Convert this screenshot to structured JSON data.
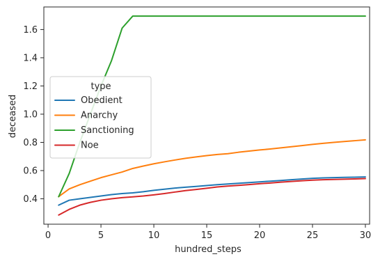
{
  "chart_data": {
    "type": "line",
    "xlabel": "hundred_steps",
    "ylabel": "deceased",
    "xlim": [
      -0.4,
      30.4
    ],
    "ylim": [
      0.22,
      1.76
    ],
    "xticks": [
      0,
      5,
      10,
      15,
      20,
      25,
      30
    ],
    "xtick_labels": [
      "0",
      "5",
      "10",
      "15",
      "20",
      "25",
      "30"
    ],
    "yticks": [
      0.4,
      0.6,
      0.8,
      1.0,
      1.2,
      1.4,
      1.6
    ],
    "ytick_labels": [
      "0.4",
      "0.6",
      "0.8",
      "1.0",
      "1.2",
      "1.4",
      "1.6"
    ],
    "grid": false,
    "legend": {
      "title": "type",
      "placement": "center-left"
    },
    "x": [
      1,
      2,
      3,
      4,
      5,
      6,
      7,
      8,
      9,
      10,
      11,
      12,
      13,
      14,
      15,
      16,
      17,
      18,
      19,
      20,
      21,
      22,
      23,
      24,
      25,
      26,
      27,
      28,
      29,
      30
    ],
    "series": [
      {
        "name": "Obedient",
        "color": "#1f77b4",
        "values": [
          0.355,
          0.39,
          0.4,
          0.41,
          0.42,
          0.43,
          0.437,
          0.442,
          0.45,
          0.46,
          0.468,
          0.476,
          0.482,
          0.488,
          0.494,
          0.5,
          0.505,
          0.51,
          0.515,
          0.52,
          0.525,
          0.53,
          0.535,
          0.54,
          0.545,
          0.548,
          0.55,
          0.552,
          0.553,
          0.555
        ]
      },
      {
        "name": "Anarchy",
        "color": "#ff7f0e",
        "values": [
          0.415,
          0.47,
          0.5,
          0.525,
          0.55,
          0.57,
          0.59,
          0.615,
          0.632,
          0.648,
          0.662,
          0.675,
          0.687,
          0.697,
          0.706,
          0.714,
          0.72,
          0.73,
          0.738,
          0.746,
          0.753,
          0.761,
          0.769,
          0.777,
          0.786,
          0.793,
          0.8,
          0.806,
          0.812,
          0.818
        ]
      },
      {
        "name": "Sanctioning",
        "color": "#2ca02c",
        "values": [
          0.415,
          0.58,
          0.8,
          1.0,
          1.2,
          1.38,
          1.61,
          1.695,
          1.695,
          1.695,
          1.695,
          1.695,
          1.695,
          1.695,
          1.695,
          1.695,
          1.695,
          1.695,
          1.695,
          1.695,
          1.695,
          1.695,
          1.695,
          1.695,
          1.695,
          1.695,
          1.695,
          1.695,
          1.695,
          1.695
        ]
      },
      {
        "name": "Noe",
        "color": "#d62728",
        "values": [
          0.285,
          0.325,
          0.355,
          0.375,
          0.39,
          0.4,
          0.408,
          0.414,
          0.42,
          0.428,
          0.437,
          0.448,
          0.458,
          0.466,
          0.475,
          0.484,
          0.49,
          0.495,
          0.501,
          0.507,
          0.512,
          0.518,
          0.523,
          0.528,
          0.532,
          0.535,
          0.537,
          0.539,
          0.541,
          0.543
        ]
      }
    ]
  }
}
